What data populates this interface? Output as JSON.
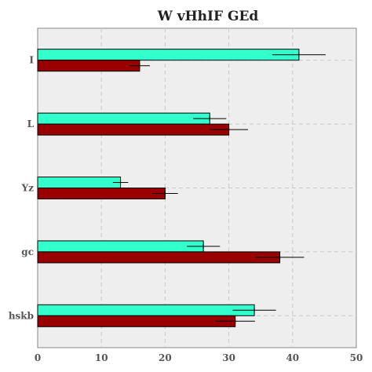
{
  "chart_data": {
    "type": "bar",
    "orientation": "horizontal",
    "title": "W vHhIF GEd",
    "xlabel": "",
    "ylabel": "",
    "xlim": [
      0,
      50
    ],
    "xticks": [
      0,
      10,
      20,
      30,
      40,
      50
    ],
    "categories": [
      "I",
      "L",
      "Yz",
      "gc",
      "hskb"
    ],
    "grid": true,
    "series": [
      {
        "color": "#33ffcc",
        "values": [
          41,
          27,
          13,
          26,
          34
        ],
        "errors": [
          4.2,
          2.6,
          1.2,
          2.6,
          3.4
        ]
      },
      {
        "color": "#990000",
        "values": [
          16,
          30,
          20,
          38,
          31
        ],
        "errors": [
          1.6,
          3.0,
          2.0,
          3.8,
          3.1
        ]
      }
    ]
  }
}
